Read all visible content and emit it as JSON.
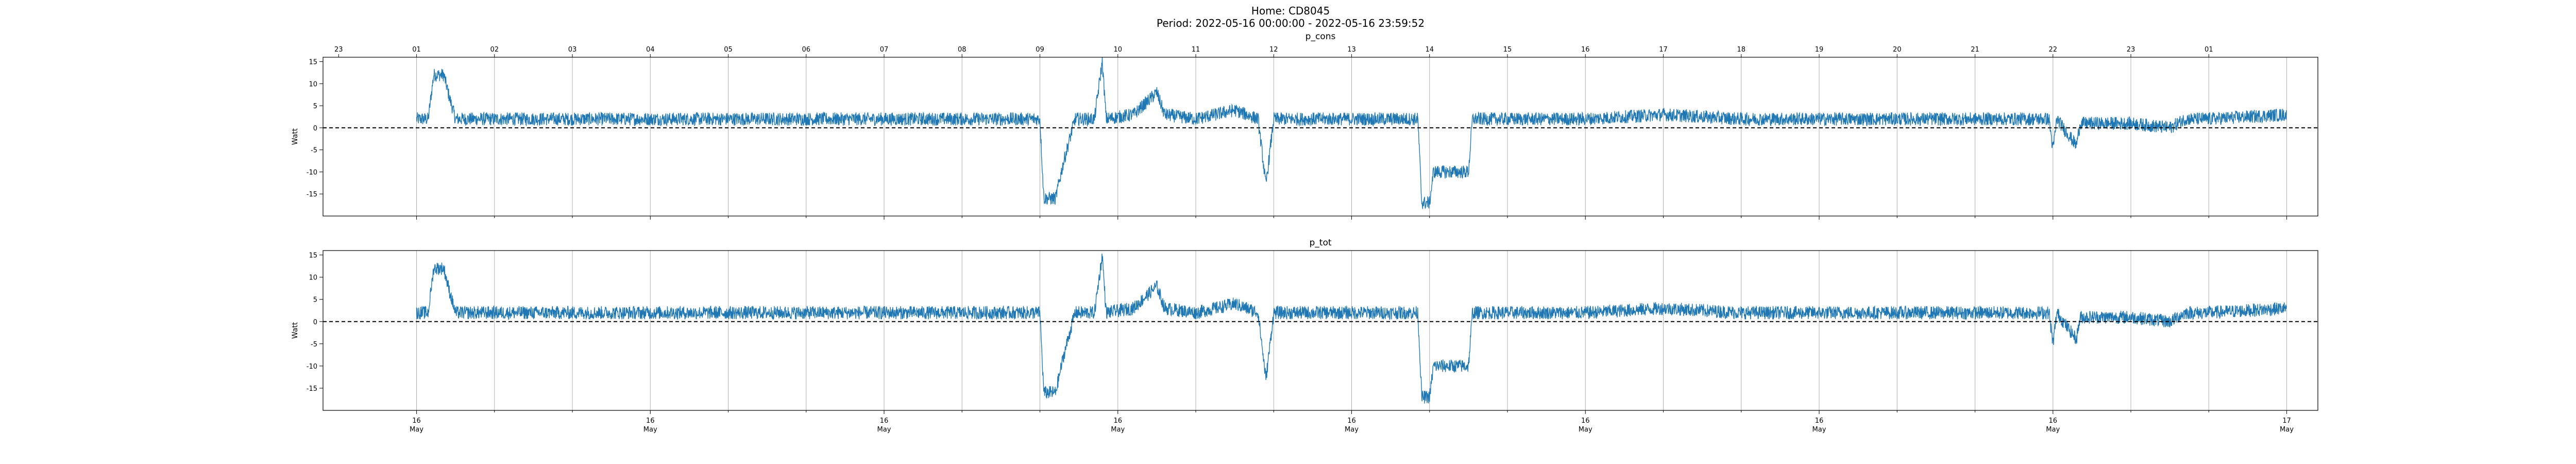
{
  "figure": {
    "title_line1": "Home: CD8045",
    "title_line2": "Period: 2022-05-16 00:00:00 - 2022-05-16 23:59:52"
  },
  "colors": {
    "series": "#1f77b4",
    "zero_line": "#000000",
    "grid": "#b0b0b0"
  },
  "chart_data": [
    {
      "type": "line",
      "title": "p_cons",
      "ylabel": "Watt",
      "ylim": [
        -20,
        16
      ],
      "yticks": [
        -15,
        -10,
        -5,
        0,
        5,
        10,
        15
      ],
      "xlim_hours": [
        -1.2,
        24.4
      ],
      "grid_x": true,
      "zero_line": "dashed",
      "top_axis_hour_labels": [
        "23",
        "01",
        "02",
        "03",
        "04",
        "05",
        "06",
        "07",
        "08",
        "09",
        "10",
        "11",
        "12",
        "13",
        "14",
        "15",
        "16",
        "17",
        "18",
        "19",
        "20",
        "21",
        "22",
        "23",
        "01"
      ],
      "bottom_axis_labels": [],
      "series": [
        {
          "points": [
            [
              0.0,
              2
            ],
            [
              0.15,
              2
            ],
            [
              0.22,
              12
            ],
            [
              0.35,
              12
            ],
            [
              0.42,
              7
            ],
            [
              0.5,
              2
            ],
            [
              1.0,
              2
            ],
            [
              2.0,
              2
            ],
            [
              3.0,
              2
            ],
            [
              4.0,
              2
            ],
            [
              5.0,
              2
            ],
            [
              6.0,
              2
            ],
            [
              7.0,
              2
            ],
            [
              8.0,
              2
            ],
            [
              8.05,
              -16
            ],
            [
              8.2,
              -16
            ],
            [
              8.3,
              -8
            ],
            [
              8.45,
              2
            ],
            [
              8.7,
              2
            ],
            [
              8.8,
              15
            ],
            [
              8.85,
              2
            ],
            [
              9.2,
              3
            ],
            [
              9.5,
              8
            ],
            [
              9.6,
              3
            ],
            [
              10.0,
              2
            ],
            [
              10.5,
              4
            ],
            [
              10.8,
              2
            ],
            [
              10.9,
              -13
            ],
            [
              11.0,
              2
            ],
            [
              12.0,
              2
            ],
            [
              12.85,
              2
            ],
            [
              12.9,
              -17
            ],
            [
              13.0,
              -17
            ],
            [
              13.05,
              -10
            ],
            [
              13.5,
              -10
            ],
            [
              13.55,
              2
            ],
            [
              14.0,
              2
            ],
            [
              15.0,
              2
            ],
            [
              16.0,
              3
            ],
            [
              17.0,
              2
            ],
            [
              18.0,
              2
            ],
            [
              19.0,
              2
            ],
            [
              20.0,
              2
            ],
            [
              20.95,
              2
            ],
            [
              21.0,
              -5
            ],
            [
              21.05,
              2
            ],
            [
              21.3,
              -4
            ],
            [
              21.35,
              1
            ],
            [
              22.0,
              1
            ],
            [
              22.5,
              0
            ],
            [
              22.7,
              2
            ],
            [
              23.0,
              2
            ],
            [
              24.0,
              3
            ]
          ],
          "noise_amplitude": 1.5
        }
      ]
    },
    {
      "type": "line",
      "title": "p_tot",
      "ylabel": "Watt",
      "ylim": [
        -20,
        16
      ],
      "yticks": [
        -15,
        -10,
        -5,
        0,
        5,
        10,
        15
      ],
      "xlim_hours": [
        -1.2,
        24.4
      ],
      "grid_x": true,
      "zero_line": "dashed",
      "top_axis_hour_labels": [],
      "bottom_axis_labels": [
        {
          "hour": 0,
          "line1": "16",
          "line2": "May"
        },
        {
          "hour": 3,
          "line1": "16",
          "line2": "May"
        },
        {
          "hour": 6,
          "line1": "16",
          "line2": "May"
        },
        {
          "hour": 9,
          "line1": "16",
          "line2": "May"
        },
        {
          "hour": 12,
          "line1": "16",
          "line2": "May"
        },
        {
          "hour": 15,
          "line1": "16",
          "line2": "May"
        },
        {
          "hour": 18,
          "line1": "16",
          "line2": "May"
        },
        {
          "hour": 21,
          "line1": "16",
          "line2": "May"
        },
        {
          "hour": 24,
          "line1": "17",
          "line2": "May"
        }
      ],
      "series": [
        {
          "points": [
            [
              0.0,
              2
            ],
            [
              0.15,
              2
            ],
            [
              0.22,
              12
            ],
            [
              0.35,
              12
            ],
            [
              0.42,
              7
            ],
            [
              0.5,
              2
            ],
            [
              1.0,
              2
            ],
            [
              2.0,
              2
            ],
            [
              3.0,
              2
            ],
            [
              4.0,
              2
            ],
            [
              5.0,
              2
            ],
            [
              6.0,
              2
            ],
            [
              7.0,
              2
            ],
            [
              8.0,
              2
            ],
            [
              8.05,
              -16
            ],
            [
              8.2,
              -16
            ],
            [
              8.3,
              -8
            ],
            [
              8.45,
              2
            ],
            [
              8.7,
              2
            ],
            [
              8.8,
              15
            ],
            [
              8.85,
              2
            ],
            [
              9.2,
              3
            ],
            [
              9.5,
              8
            ],
            [
              9.6,
              3
            ],
            [
              10.0,
              2
            ],
            [
              10.5,
              4
            ],
            [
              10.8,
              2
            ],
            [
              10.9,
              -13
            ],
            [
              11.0,
              2
            ],
            [
              12.0,
              2
            ],
            [
              12.85,
              2
            ],
            [
              12.9,
              -17
            ],
            [
              13.0,
              -17
            ],
            [
              13.05,
              -10
            ],
            [
              13.5,
              -10
            ],
            [
              13.55,
              2
            ],
            [
              14.0,
              2
            ],
            [
              15.0,
              2
            ],
            [
              16.0,
              3
            ],
            [
              17.0,
              2
            ],
            [
              18.0,
              2
            ],
            [
              19.0,
              2
            ],
            [
              20.0,
              2
            ],
            [
              20.95,
              2
            ],
            [
              21.0,
              -5
            ],
            [
              21.05,
              2
            ],
            [
              21.3,
              -4
            ],
            [
              21.35,
              1
            ],
            [
              22.0,
              1
            ],
            [
              22.5,
              0
            ],
            [
              22.7,
              2
            ],
            [
              23.0,
              2
            ],
            [
              24.0,
              3
            ]
          ],
          "noise_amplitude": 1.5
        }
      ]
    }
  ]
}
